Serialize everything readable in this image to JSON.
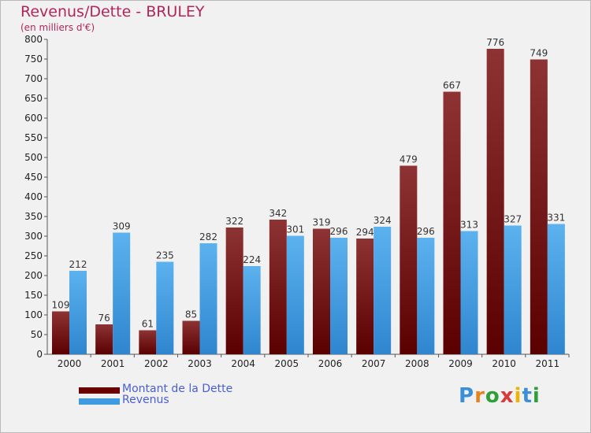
{
  "header": {
    "title": "Revenus/Dette - BRULEY",
    "subtitle": "(en milliers d'€)"
  },
  "colors": {
    "dette": "#7a1f1f",
    "revenus": "#45a2e6",
    "title": "#b3255a",
    "legend_text": "#4a5fd1"
  },
  "legend": [
    {
      "label": "Montant de la Dette",
      "color": "#6b0000"
    },
    {
      "label": "Revenus",
      "color": "#3f9be0"
    }
  ],
  "logo": {
    "text": "Proxiti"
  },
  "chart_data": {
    "type": "bar",
    "categories": [
      "2000",
      "2001",
      "2002",
      "2003",
      "2004",
      "2005",
      "2006",
      "2007",
      "2008",
      "2009",
      "2010",
      "2011"
    ],
    "series": [
      {
        "name": "Montant de la Dette",
        "values": [
          109,
          76,
          61,
          85,
          322,
          342,
          319,
          294,
          479,
          667,
          776,
          749
        ]
      },
      {
        "name": "Revenus",
        "values": [
          212,
          309,
          235,
          282,
          224,
          301,
          296,
          324,
          296,
          313,
          327,
          331
        ]
      }
    ],
    "title": "Revenus/Dette - BRULEY",
    "subtitle": "(en milliers d'€)",
    "ylim": [
      0,
      800
    ],
    "yticks": [
      0,
      50,
      100,
      150,
      200,
      250,
      300,
      350,
      400,
      450,
      500,
      550,
      600,
      650,
      700,
      750,
      800
    ],
    "grid": false,
    "legend_position": "bottom-left"
  }
}
